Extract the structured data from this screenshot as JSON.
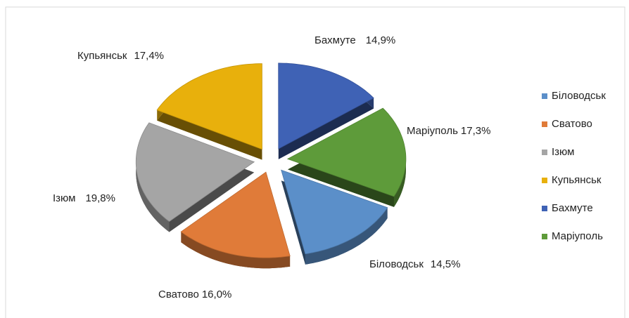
{
  "chart_data": {
    "type": "pie",
    "categories": [
      "Біловодськ",
      "Сватово",
      "Ізюм",
      "Купьянськ",
      "Бахмуте",
      "Маріуполь"
    ],
    "values": [
      14.5,
      16.0,
      19.8,
      17.4,
      14.9,
      17.3
    ],
    "value_labels": [
      "14,5%",
      "16,0%",
      "19,8%",
      "17,4%",
      "14,9%",
      "17,3%"
    ],
    "colors": [
      "#5b8fc9",
      "#e07b39",
      "#a5a5a5",
      "#e8b00c",
      "#3f62b5",
      "#5e9b3a"
    ],
    "legend": "right"
  }
}
